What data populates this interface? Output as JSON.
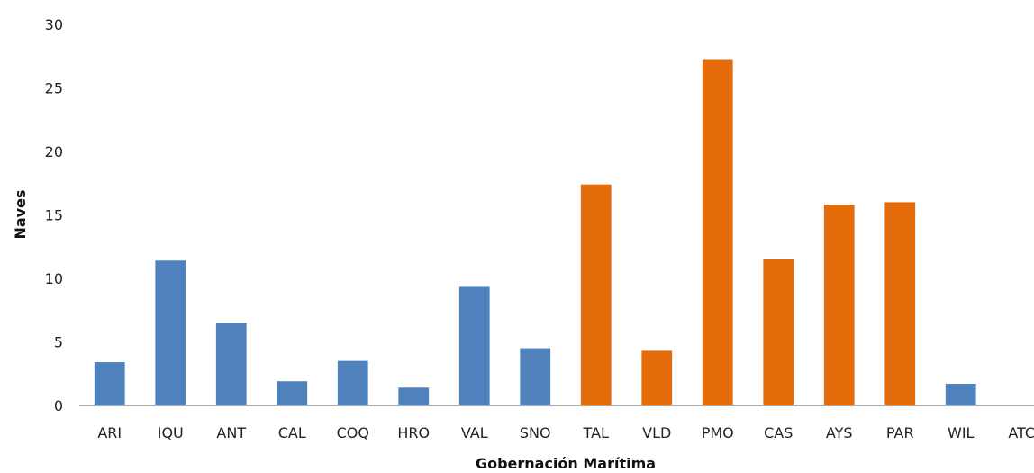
{
  "chart_data": {
    "type": "bar",
    "title": "",
    "xlabel": "Gobernación Marítima",
    "ylabel": "Naves",
    "ylim": [
      0,
      30
    ],
    "yticks": [
      0,
      5,
      10,
      15,
      20,
      25,
      30
    ],
    "grid": false,
    "categories": [
      "ARI",
      "IQU",
      "ANT",
      "CAL",
      "COQ",
      "HRO",
      "VAL",
      "SNO",
      "TAL",
      "VLD",
      "PMO",
      "CAS",
      "AYS",
      "PAR",
      "WIL",
      "ATC"
    ],
    "values": [
      3.4,
      11.4,
      6.5,
      1.9,
      3.5,
      1.4,
      9.4,
      4.5,
      17.4,
      4.3,
      27.2,
      11.5,
      15.8,
      16.0,
      1.7,
      0
    ],
    "colors": [
      "#4f81bd",
      "#4f81bd",
      "#4f81bd",
      "#4f81bd",
      "#4f81bd",
      "#4f81bd",
      "#4f81bd",
      "#4f81bd",
      "#e46c0a",
      "#e46c0a",
      "#e46c0a",
      "#e46c0a",
      "#e46c0a",
      "#e46c0a",
      "#4f81bd",
      "#4f81bd"
    ]
  }
}
